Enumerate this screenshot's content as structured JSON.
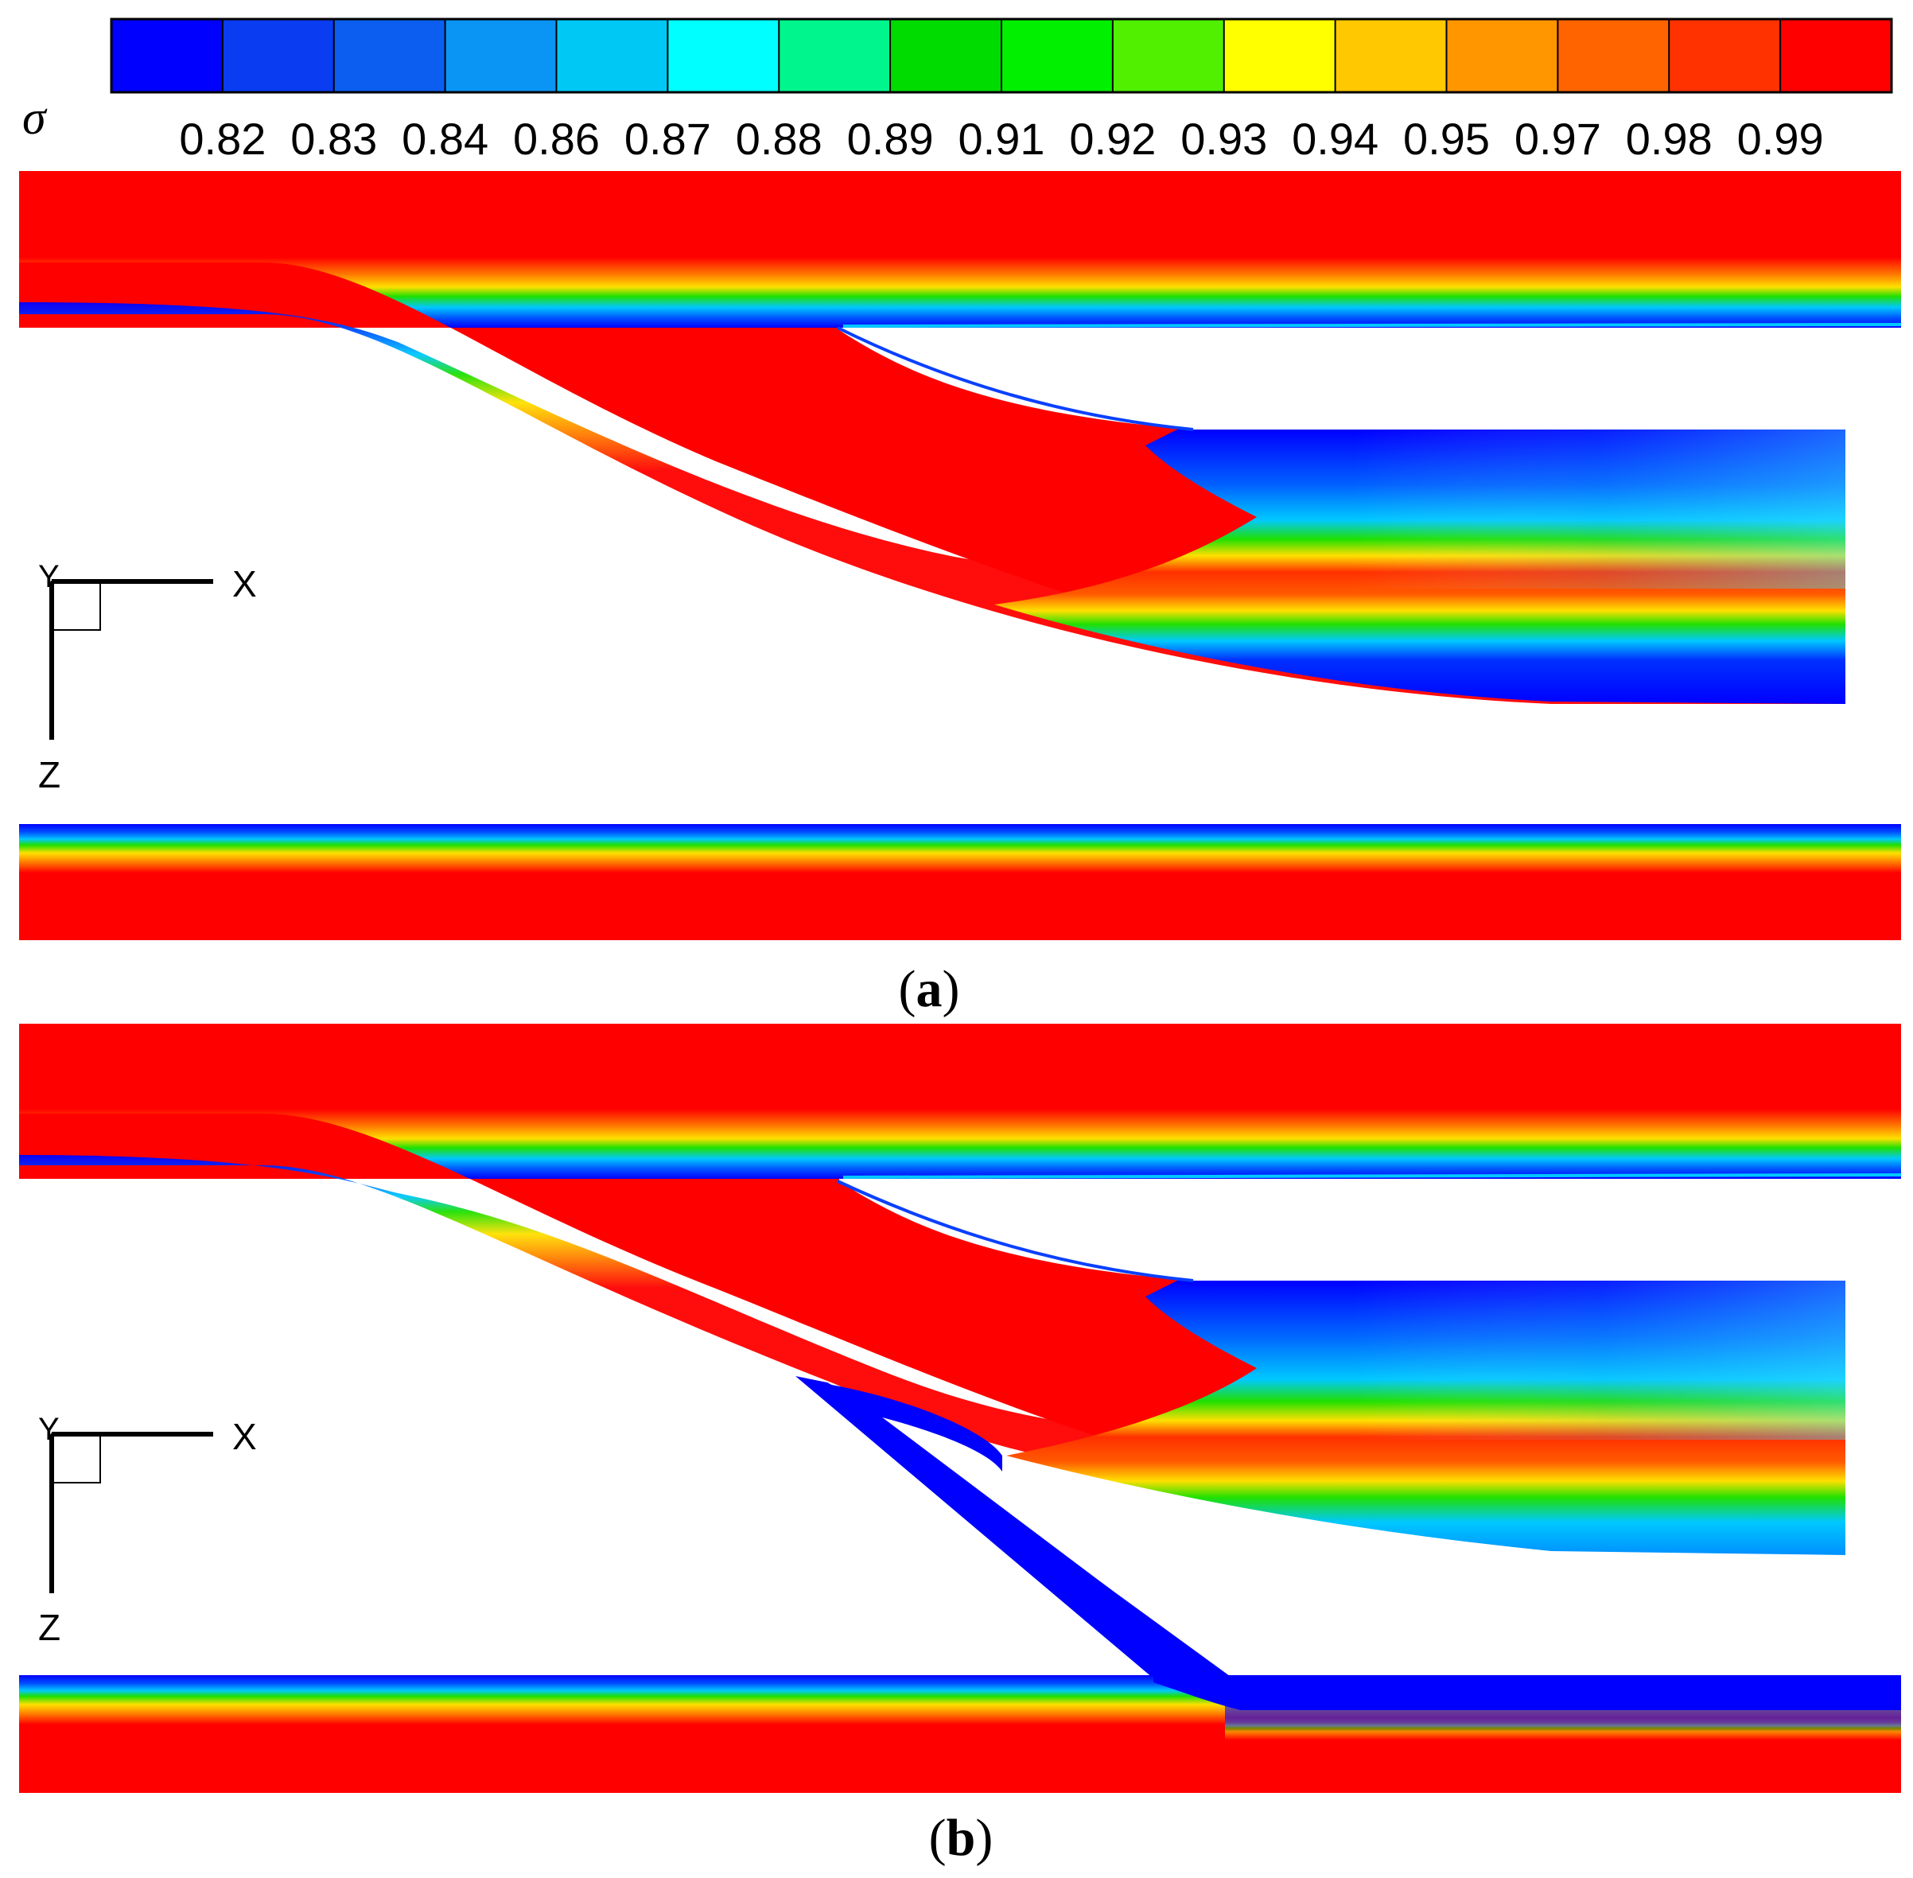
{
  "colorbar": {
    "symbol": "σ",
    "tick_labels": [
      "0.82",
      "0.83",
      "0.84",
      "0.86",
      "0.87",
      "0.88",
      "0.89",
      "0.91",
      "0.92",
      "0.93",
      "0.94",
      "0.95",
      "0.97",
      "0.98",
      "0.99"
    ],
    "bin_colors": [
      "#0000ff",
      "#0a3cf2",
      "#0b5ef0",
      "#0a95f4",
      "#00c8f5",
      "#00ffff",
      "#00f58c",
      "#00dc00",
      "#00f000",
      "#50f000",
      "#ffff00",
      "#ffc800",
      "#ff9600",
      "#ff6400",
      "#ff3200",
      "#ff0000"
    ]
  },
  "axes_triad": {
    "x": "X",
    "y": "Y",
    "z": "Z"
  },
  "panels": [
    {
      "id": "a",
      "caption_open": "(",
      "caption_letter": "a",
      "caption_close": ")"
    },
    {
      "id": "b",
      "caption_open": "(",
      "caption_letter": "b",
      "caption_close": ")"
    }
  ]
}
